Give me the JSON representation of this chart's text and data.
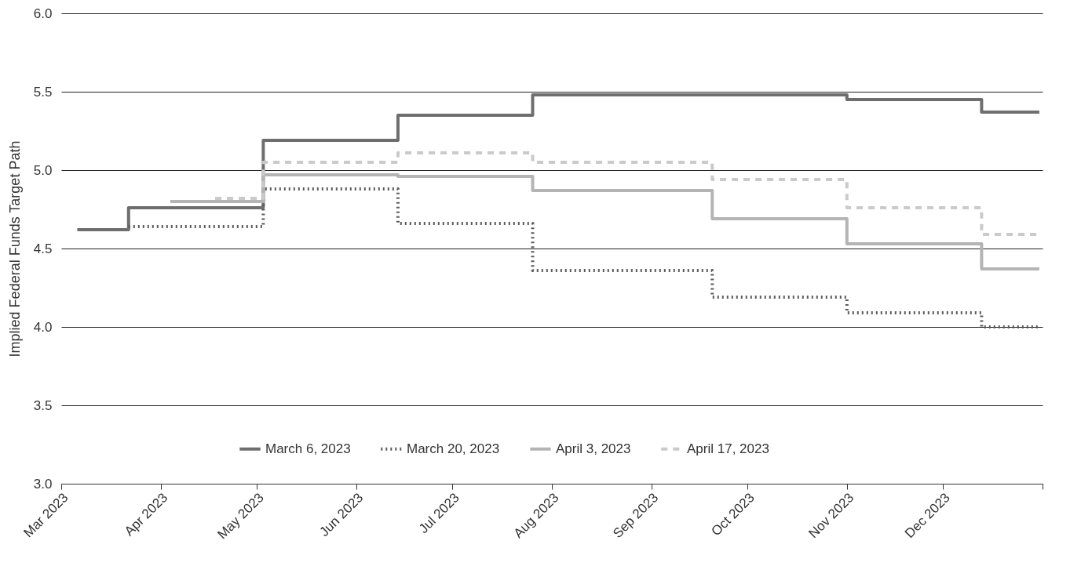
{
  "chart_data": {
    "type": "step",
    "ylabel": "Implied Federal Funds Target Path",
    "series": [
      {
        "name": "March 6, 2023",
        "color": "#6e6e6e",
        "line_style": "solid",
        "x": [
          "2023-03-06",
          "2023-03-22",
          "2023-05-03",
          "2023-06-14",
          "2023-07-26",
          "2023-11-01",
          "2023-12-13",
          "2023-12-31"
        ],
        "values": [
          4.62,
          4.76,
          5.19,
          5.35,
          5.48,
          5.45,
          5.37,
          5.37
        ]
      },
      {
        "name": "March 20, 2023",
        "color": "#5a5a5a",
        "line_style": "dotted",
        "x": [
          "2023-03-22",
          "2023-05-03",
          "2023-06-14",
          "2023-07-26",
          "2023-09-20",
          "2023-11-01",
          "2023-12-13",
          "2023-12-31"
        ],
        "values": [
          4.64,
          4.88,
          4.66,
          4.36,
          4.19,
          4.09,
          4.0,
          4.0
        ]
      },
      {
        "name": "April 3, 2023",
        "color": "#b4b4b4",
        "line_style": "solid",
        "x": [
          "2023-04-04",
          "2023-05-03",
          "2023-06-14",
          "2023-07-26",
          "2023-09-20",
          "2023-11-01",
          "2023-12-13",
          "2023-12-31"
        ],
        "values": [
          4.8,
          4.97,
          4.96,
          4.87,
          4.69,
          4.53,
          4.37,
          4.37
        ]
      },
      {
        "name": "April 17, 2023",
        "color": "#cacaca",
        "line_style": "dashed",
        "x": [
          "2023-04-18",
          "2023-05-03",
          "2023-06-14",
          "2023-07-26",
          "2023-09-20",
          "2023-11-01",
          "2023-12-13",
          "2023-12-31"
        ],
        "values": [
          4.82,
          5.05,
          5.11,
          5.05,
          4.94,
          4.76,
          4.59,
          4.59
        ]
      }
    ],
    "xlim": [
      "2023-03-01",
      "2024-01-01"
    ],
    "xticks": [
      {
        "value": "2023-03-01",
        "label": "Mar 2023"
      },
      {
        "value": "2023-04-01",
        "label": "Apr 2023"
      },
      {
        "value": "2023-05-01",
        "label": "May 2023"
      },
      {
        "value": "2023-06-01",
        "label": "Jun 2023"
      },
      {
        "value": "2023-07-01",
        "label": "Jul 2023"
      },
      {
        "value": "2023-08-01",
        "label": "Aug 2023"
      },
      {
        "value": "2023-09-01",
        "label": "Sep 2023"
      },
      {
        "value": "2023-10-01",
        "label": "Oct 2023"
      },
      {
        "value": "2023-11-01",
        "label": "Nov 2023"
      },
      {
        "value": "2023-12-01",
        "label": "Dec 2023"
      },
      {
        "value": "2024-01-01",
        "label": null
      }
    ],
    "ylim": [
      3,
      6
    ],
    "yticks": [
      {
        "value": 3,
        "label": "3.0"
      },
      {
        "value": 3.5,
        "label": "3.5"
      },
      {
        "value": 4,
        "label": "4.0"
      },
      {
        "value": 4.5,
        "label": "4.5"
      },
      {
        "value": 5,
        "label": "5.0"
      },
      {
        "value": 5.5,
        "label": "5.5"
      },
      {
        "value": 6,
        "label": "6.0"
      }
    ],
    "grid": "y",
    "legend": "bottom",
    "marker": "none"
  }
}
